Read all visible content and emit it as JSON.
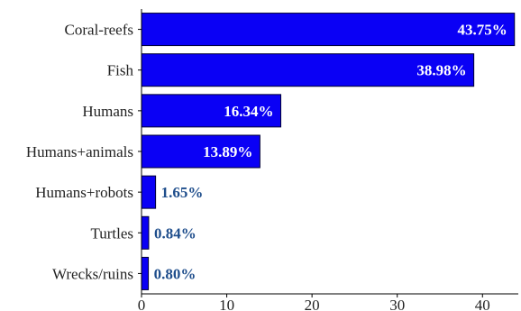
{
  "chart_data": {
    "type": "bar",
    "orientation": "horizontal",
    "categories": [
      "Coral-reefs",
      "Fish",
      "Humans",
      "Humans+animals",
      "Humans+robots",
      "Turtles",
      "Wrecks/ruins"
    ],
    "values": [
      43.75,
      38.98,
      16.34,
      13.89,
      1.65,
      0.84,
      0.8
    ],
    "value_labels": [
      "43.75%",
      "38.98%",
      "16.34%",
      "13.89%",
      "1.65%",
      "0.84%",
      "0.80%"
    ],
    "title": "",
    "xlabel": "",
    "ylabel": "",
    "xlim": [
      0,
      44.2
    ],
    "x_ticks": [
      0,
      10,
      20,
      30,
      40
    ],
    "x_tick_labels": [
      "0",
      "10",
      "20",
      "30",
      "40"
    ],
    "grid": false,
    "colors": {
      "bar": "#0a00f5",
      "label_inside": "#ffffff",
      "label_outside": "#1f4e8c"
    }
  }
}
